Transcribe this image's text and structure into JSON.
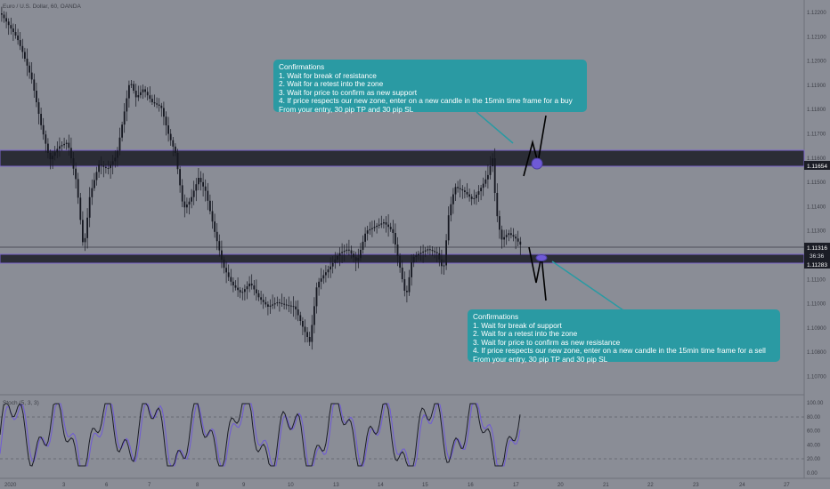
{
  "symbol_label": "Euro / U.S. Dollar, 60, OANDA",
  "indicator_label": "Stoch (5, 3, 3)",
  "price_axis": {
    "ticks": [
      "1.12200",
      "1.12100",
      "1.12000",
      "1.11900",
      "1.11800",
      "1.11700",
      "1.11600",
      "1.11500",
      "1.11400",
      "1.11300",
      "1.11200",
      "1.11100",
      "1.11000",
      "1.10900",
      "1.10800",
      "1.10700"
    ],
    "current_price": "1.11316",
    "countdown": "36:36",
    "resistance_price": "1.11654",
    "support_price": "1.11283"
  },
  "osc_axis": {
    "ticks": [
      "100.00",
      "80.00",
      "60.00",
      "40.00",
      "20.00",
      "0.00"
    ]
  },
  "time_axis": {
    "ticks": [
      "2020",
      "3",
      "6",
      "7",
      "8",
      "9",
      "10",
      "13",
      "14",
      "15",
      "16",
      "17",
      "20",
      "21",
      "22",
      "23",
      "24",
      "27"
    ]
  },
  "colors": {
    "background": "#8a8d96",
    "zone": "#2b2d36",
    "zone_border": "#7a62c9",
    "candle": "#161821",
    "stoch_k": "#1b1d26",
    "stoch_d": "#6f5ad6",
    "note": "#2a9aa3",
    "price_tag": "#1b1d26"
  },
  "notes": {
    "buy": {
      "lines": [
        "Confirmations",
        "1. Wait for break of resistance",
        "2. Wait for a retest into the zone",
        "3. Wait for price to confirm as new support",
        "4. If price respects our new zone, enter on a new candle in the 15min time frame for a buy",
        "From your entry, 30 pip TP and 30 pip SL"
      ]
    },
    "sell": {
      "lines": [
        "Confirmations",
        "1. Wait for break of support",
        "2. Wait for a retest into the zone",
        "3. Wait for price to confirm as new resistance",
        "4. If price respects our new zone, enter on a new candle in the 15min time frame for a sell",
        "From your entry, 30 pip TP and 30 pip SL"
      ]
    }
  }
}
